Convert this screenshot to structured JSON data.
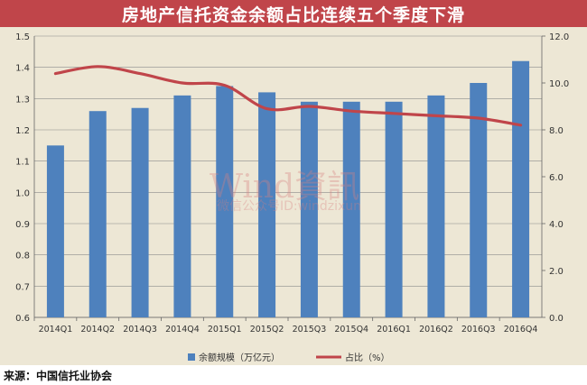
{
  "title": "房地产信托资金余额占比连续五个季度下滑",
  "source": "来源：中国信托业协会",
  "watermark": {
    "main": "Wind資訊",
    "sub": "微信公众号ID:windzixun"
  },
  "colors": {
    "bar": "#4e81bd",
    "line": "#c0454a",
    "panel": "#ede7d5",
    "title_bg": "#c0454a"
  },
  "chart_data": {
    "type": "bar",
    "categories": [
      "2014Q1",
      "2014Q2",
      "2014Q3",
      "2014Q4",
      "2015Q1",
      "2015Q2",
      "2015Q3",
      "2015Q4",
      "2016Q1",
      "2016Q2",
      "2016Q3",
      "2016Q4"
    ],
    "series": [
      {
        "name": "余额规模（万亿元）",
        "type": "bar",
        "axis": "left",
        "values": [
          1.15,
          1.26,
          1.27,
          1.31,
          1.34,
          1.32,
          1.29,
          1.29,
          1.29,
          1.31,
          1.35,
          1.42
        ]
      },
      {
        "name": "占比（%）",
        "type": "line",
        "axis": "right",
        "values": [
          10.4,
          10.7,
          10.4,
          10.0,
          9.9,
          8.9,
          9.0,
          8.8,
          8.7,
          8.6,
          8.5,
          8.2
        ]
      }
    ],
    "y_left": {
      "min": 0.6,
      "max": 1.5,
      "ticks": [
        "0.6",
        "0.7",
        "0.8",
        "0.9",
        "1.0",
        "1.1",
        "1.2",
        "1.3",
        "1.4",
        "1.5"
      ]
    },
    "y_right": {
      "min": 0.0,
      "max": 12.0,
      "ticks": [
        "0.0",
        "2.0",
        "4.0",
        "6.0",
        "8.0",
        "10.0",
        "12.0"
      ]
    },
    "grid": true,
    "legend": "bottom"
  }
}
